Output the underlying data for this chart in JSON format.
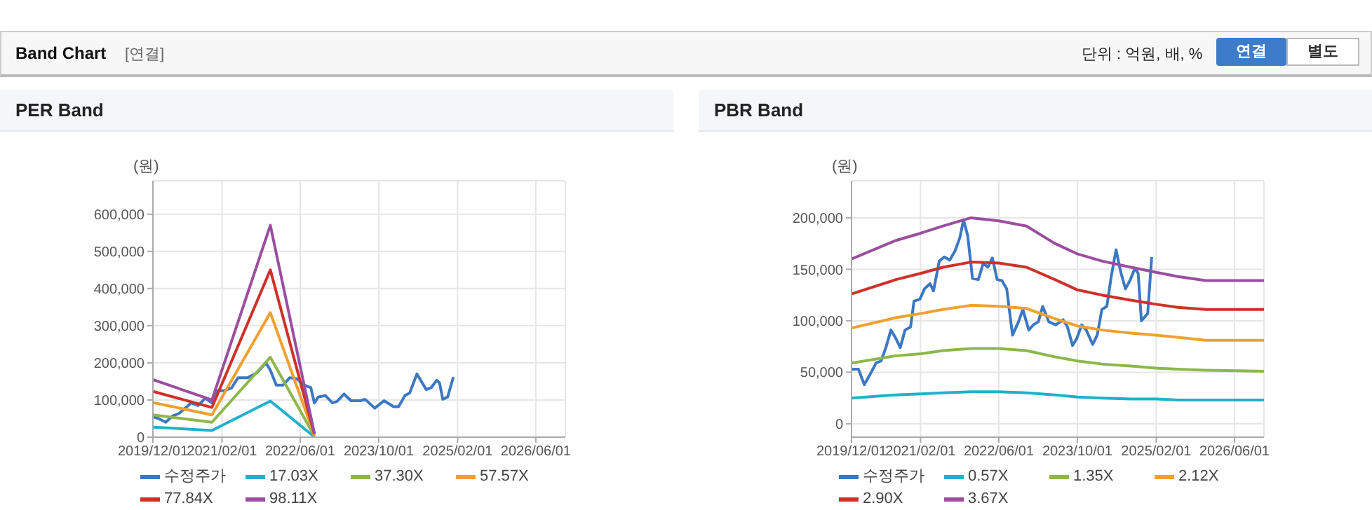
{
  "chart_data": [
    {
      "type": "line",
      "title": "PER Band",
      "ylabel": "(원)",
      "annotations": [
        "Band Chart",
        "[연결]",
        "단위 : 억원, 배, %",
        "연결",
        "별도"
      ],
      "xlim": [
        "2019-12-01",
        "2026-12-01"
      ],
      "xticks": [
        {
          "value": "2019-12-01",
          "label": "2019/12/01"
        },
        {
          "value": "2021-02-01",
          "label": "2021/02/01"
        },
        {
          "value": "2022-06-01",
          "label": "2022/06/01"
        },
        {
          "value": "2023-10-01",
          "label": "2023/10/01"
        },
        {
          "value": "2025-02-01",
          "label": "2025/02/01"
        },
        {
          "value": "2026-06-01",
          "label": "2026/06/01"
        }
      ],
      "ylim": [
        0,
        690000
      ],
      "yticks": [
        0,
        {
          "value": 100000,
          "label": "100,000"
        },
        {
          "value": 200000,
          "label": "200,000"
        },
        {
          "value": 300000,
          "label": "300,000"
        },
        {
          "value": 400000,
          "label": "400,000"
        },
        {
          "value": 500000,
          "label": "500,000"
        },
        {
          "value": 600000,
          "label": "600,000"
        }
      ],
      "grid": true,
      "legend": "bottom",
      "marker": "none",
      "line_style": "solid",
      "series": [
        {
          "name": "수정주가",
          "color": "#3b78c3",
          "x": [
            "2019-12-01",
            "2020-01-05",
            "2020-02-18",
            "2020-04-01",
            "2020-05-12",
            "2020-07-25",
            "2020-09-06",
            "2020-10-21",
            "2020-12-01",
            "2021-01-04",
            "2021-02-15",
            "2021-04-01",
            "2021-05-12",
            "2021-07-10",
            "2021-09-06",
            "2021-11-01",
            "2021-11-28",
            "2022-01-04",
            "2022-02-15",
            "2022-03-28",
            "2022-05-12",
            "2022-06-25",
            "2022-08-06",
            "2022-08-28",
            "2022-09-21",
            "2022-11-04",
            "2022-12-18",
            "2023-01-15",
            "2023-02-28",
            "2023-04-12",
            "2023-06-10",
            "2023-07-08",
            "2023-09-06",
            "2023-11-03",
            "2024-01-01",
            "2024-02-01",
            "2024-03-12",
            "2024-04-10",
            "2024-05-25",
            "2024-07-21",
            "2024-08-21",
            "2024-09-24",
            "2024-10-12",
            "2024-11-01",
            "2024-12-01",
            "2025-01-06"
          ],
          "values": [
            55000,
            50000,
            40000,
            57000,
            64000,
            92000,
            85000,
            105000,
            92000,
            125000,
            125000,
            132000,
            160000,
            160000,
            173000,
            200000,
            180000,
            140000,
            140000,
            160000,
            157000,
            140000,
            133000,
            92000,
            108000,
            112000,
            92000,
            96000,
            116000,
            98000,
            98000,
            102000,
            78000,
            98000,
            82000,
            82000,
            112000,
            119000,
            170000,
            128000,
            133000,
            153000,
            146000,
            102000,
            108000,
            162000
          ]
        },
        {
          "name": "17.03X",
          "color": "#1fb1c9",
          "x": [
            "2019-12-01",
            "2020-12-01",
            "2021-11-28",
            "2022-08-28"
          ],
          "values": [
            27000,
            18000,
            97000,
            1000
          ]
        },
        {
          "name": "37.30X",
          "color": "#8cb84a",
          "x": [
            "2019-12-01",
            "2020-12-01",
            "2021-11-28",
            "2022-08-28"
          ],
          "values": [
            60000,
            40000,
            215000,
            3000
          ]
        },
        {
          "name": "57.57X",
          "color": "#f0a030",
          "x": [
            "2019-12-01",
            "2020-12-01",
            "2021-11-28",
            "2022-08-28"
          ],
          "values": [
            93000,
            60000,
            335000,
            5000
          ]
        },
        {
          "name": "77.84X",
          "color": "#d0302a",
          "x": [
            "2019-12-01",
            "2020-12-01",
            "2021-11-28",
            "2022-08-28"
          ],
          "values": [
            123000,
            80000,
            450000,
            8000
          ]
        },
        {
          "name": "98.11X",
          "color": "#9b4ea0",
          "x": [
            "2019-12-01",
            "2020-12-01",
            "2021-11-28",
            "2022-08-28"
          ],
          "values": [
            155000,
            100000,
            570000,
            10000
          ]
        }
      ]
    },
    {
      "type": "line",
      "title": "PBR Band",
      "ylabel": "(원)",
      "xlim": [
        "2019-12-01",
        "2026-12-01"
      ],
      "xticks": [
        {
          "value": "2019-12-01",
          "label": "2019/12/01"
        },
        {
          "value": "2021-02-01",
          "label": "2021/02/01"
        },
        {
          "value": "2022-06-01",
          "label": "2022/06/01"
        },
        {
          "value": "2023-10-01",
          "label": "2023/10/01"
        },
        {
          "value": "2025-02-01",
          "label": "2025/02/01"
        },
        {
          "value": "2026-06-01",
          "label": "2026/06/01"
        }
      ],
      "ylim": [
        -13000,
        236000
      ],
      "yticks": [
        0,
        {
          "value": 50000,
          "label": "50,000"
        },
        {
          "value": 100000,
          "label": "100,000"
        },
        {
          "value": 150000,
          "label": "150,000"
        },
        {
          "value": 200000,
          "label": "200,000"
        }
      ],
      "grid": true,
      "legend": "bottom",
      "marker": "none",
      "line_style": "solid",
      "series": [
        {
          "name": "수정주가",
          "color": "#3b78c3",
          "x": [
            "2019-12-01",
            "2020-01-13",
            "2020-02-18",
            "2020-03-25",
            "2020-05-01",
            "2020-06-01",
            "2020-07-01",
            "2020-08-01",
            "2020-08-28",
            "2020-09-28",
            "2020-10-28",
            "2020-12-01",
            "2020-12-22",
            "2021-01-28",
            "2021-02-25",
            "2021-04-01",
            "2021-04-22",
            "2021-05-28",
            "2021-06-28",
            "2021-08-01",
            "2021-09-03",
            "2021-10-03",
            "2021-10-25",
            "2021-11-20",
            "2021-12-20",
            "2022-01-25",
            "2022-02-25",
            "2022-03-25",
            "2022-04-22",
            "2022-05-22",
            "2022-06-20",
            "2022-07-20",
            "2022-08-25",
            "2022-10-01",
            "2022-10-28",
            "2022-12-04",
            "2023-01-01",
            "2023-02-01",
            "2023-02-28",
            "2023-04-07",
            "2023-05-20",
            "2023-07-04",
            "2023-08-01",
            "2023-09-01",
            "2023-09-28",
            "2023-10-28",
            "2023-11-25",
            "2024-01-04",
            "2024-02-01",
            "2024-03-01",
            "2024-04-01",
            "2024-04-28",
            "2024-05-28",
            "2024-06-25",
            "2024-07-25",
            "2024-08-22",
            "2024-09-22",
            "2024-10-12",
            "2024-11-01",
            "2024-12-10",
            "2025-01-04"
          ],
          "values": [
            53000,
            53000,
            38000,
            48000,
            59000,
            61000,
            74000,
            91000,
            84000,
            74000,
            91000,
            94000,
            119000,
            121000,
            131000,
            136000,
            129000,
            158000,
            162000,
            159000,
            168000,
            181000,
            198000,
            183000,
            141000,
            140000,
            156000,
            152000,
            161000,
            140000,
            139000,
            131000,
            86000,
            99000,
            111000,
            91000,
            96000,
            99000,
            114000,
            99000,
            96000,
            101000,
            94000,
            76000,
            83000,
            96000,
            91000,
            77000,
            86000,
            111000,
            114000,
            143000,
            169000,
            148000,
            131000,
            139000,
            151000,
            146000,
            100000,
            107000,
            162000
          ]
        },
        {
          "name": "0.57X",
          "color": "#1fb1c9",
          "x": [
            "2019-12-01",
            "2020-09-01",
            "2021-02-01",
            "2021-06-20",
            "2021-12-10",
            "2022-06-01",
            "2022-11-20",
            "2023-05-15",
            "2023-10-01",
            "2024-03-01",
            "2024-08-28",
            "2025-02-01",
            "2025-06-15",
            "2025-12-05",
            "2026-12-01"
          ],
          "values": [
            25000,
            28000,
            29000,
            30000,
            31000,
            31000,
            30000,
            28000,
            26000,
            25000,
            24000,
            24000,
            23000,
            23000,
            23000
          ]
        },
        {
          "name": "1.35X",
          "color": "#8cb84a",
          "x": [
            "2019-12-01",
            "2020-09-01",
            "2021-02-01",
            "2021-06-20",
            "2021-12-10",
            "2022-06-01",
            "2022-11-20",
            "2023-05-15",
            "2023-10-01",
            "2024-03-01",
            "2024-08-28",
            "2025-02-01",
            "2025-06-15",
            "2025-12-05",
            "2026-12-01"
          ],
          "values": [
            59000,
            66000,
            68000,
            71000,
            73000,
            73000,
            71000,
            65000,
            61000,
            58000,
            56000,
            54000,
            53000,
            52000,
            51000
          ]
        },
        {
          "name": "2.12X",
          "color": "#f0a030",
          "x": [
            "2019-12-01",
            "2020-09-01",
            "2021-02-01",
            "2021-06-20",
            "2021-12-10",
            "2022-06-01",
            "2022-11-20",
            "2023-05-15",
            "2023-10-01",
            "2024-03-01",
            "2024-08-28",
            "2025-02-01",
            "2025-06-15",
            "2025-12-05",
            "2026-12-01"
          ],
          "values": [
            93000,
            103000,
            107000,
            111000,
            115000,
            114000,
            112000,
            102000,
            95000,
            91000,
            88000,
            86000,
            84000,
            81000,
            81000
          ]
        },
        {
          "name": "2.90X",
          "color": "#d0302a",
          "x": [
            "2019-12-01",
            "2020-09-01",
            "2021-02-01",
            "2021-06-20",
            "2021-12-10",
            "2022-06-01",
            "2022-11-20",
            "2023-05-15",
            "2023-10-01",
            "2024-03-01",
            "2024-08-28",
            "2025-02-01",
            "2025-06-15",
            "2025-12-05",
            "2026-12-01"
          ],
          "values": [
            126000,
            140000,
            146000,
            152000,
            157000,
            156000,
            152000,
            140000,
            130000,
            125000,
            120000,
            116000,
            113000,
            111000,
            111000
          ]
        },
        {
          "name": "3.67X",
          "color": "#9b4ea0",
          "x": [
            "2019-12-01",
            "2020-09-01",
            "2021-02-01",
            "2021-06-20",
            "2021-12-10",
            "2022-06-01",
            "2022-11-20",
            "2023-05-15",
            "2023-10-01",
            "2024-03-01",
            "2024-08-28",
            "2025-02-01",
            "2025-06-15",
            "2025-12-05",
            "2026-12-01"
          ],
          "values": [
            160000,
            178000,
            185000,
            192000,
            200000,
            197000,
            192000,
            175000,
            165000,
            158000,
            152000,
            147000,
            143000,
            139000,
            139000
          ]
        }
      ]
    }
  ]
}
